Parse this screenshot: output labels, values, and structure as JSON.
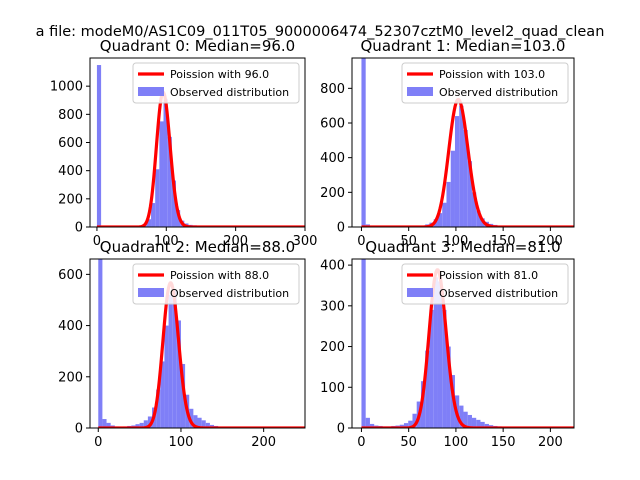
{
  "figure": {
    "suptitle": "a file: modeM0/AS1C09_011T05_9000006474_52307cztM0_level2_quad_clean"
  },
  "colors": {
    "hist": "#7f7ff7",
    "poisson": "#ff0000",
    "axis": "#000000"
  },
  "chart_data": [
    {
      "type": "bar",
      "title": "Quadrant 0: Median=96.0",
      "median": 96.0,
      "xlim": [
        -10,
        300
      ],
      "ylim": [
        0,
        1200
      ],
      "xticks": [
        0,
        100,
        200,
        300
      ],
      "yticks": [
        0,
        200,
        400,
        600,
        800,
        1000
      ],
      "bin_width": 6,
      "bars": [
        [
          0,
          1150
        ],
        [
          42,
          2
        ],
        [
          48,
          5
        ],
        [
          54,
          6
        ],
        [
          60,
          10
        ],
        [
          66,
          20
        ],
        [
          72,
          55
        ],
        [
          78,
          170
        ],
        [
          84,
          410
        ],
        [
          90,
          750
        ],
        [
          96,
          910
        ],
        [
          102,
          640
        ],
        [
          108,
          330
        ],
        [
          114,
          120
        ],
        [
          120,
          45
        ],
        [
          126,
          25
        ],
        [
          132,
          15
        ],
        [
          138,
          12
        ],
        [
          144,
          8
        ],
        [
          150,
          6
        ],
        [
          156,
          5
        ],
        [
          162,
          4
        ],
        [
          168,
          3
        ],
        [
          174,
          3
        ],
        [
          180,
          2
        ],
        [
          186,
          2
        ],
        [
          192,
          2
        ]
      ],
      "poisson_label": "Poission with 96.0",
      "hist_label": "Observed distribution"
    },
    {
      "type": "bar",
      "title": "Quadrant 1: Median=103.0",
      "median": 103.0,
      "xlim": [
        -10,
        225
      ],
      "ylim": [
        0,
        975
      ],
      "xticks": [
        0,
        50,
        100,
        150,
        200
      ],
      "yticks": [
        0,
        200,
        400,
        600,
        800
      ],
      "bin_width": 4.5,
      "bars": [
        [
          0,
          975
        ],
        [
          4.5,
          15
        ],
        [
          54,
          3
        ],
        [
          58.5,
          5
        ],
        [
          63,
          8
        ],
        [
          67.5,
          15
        ],
        [
          72,
          25
        ],
        [
          76.5,
          45
        ],
        [
          81,
          80
        ],
        [
          85.5,
          140
        ],
        [
          90,
          260
        ],
        [
          94.5,
          440
        ],
        [
          99,
          640
        ],
        [
          103.5,
          700
        ],
        [
          108,
          560
        ],
        [
          112.5,
          380
        ],
        [
          117,
          200
        ],
        [
          121.5,
          95
        ],
        [
          126,
          50
        ],
        [
          130.5,
          30
        ],
        [
          135,
          18
        ],
        [
          139.5,
          12
        ],
        [
          144,
          8
        ],
        [
          148.5,
          5
        ],
        [
          153,
          4
        ],
        [
          157.5,
          3
        ],
        [
          162,
          2
        ],
        [
          166.5,
          2
        ]
      ],
      "poisson_label": "Poission with 103.0",
      "hist_label": "Observed distribution"
    },
    {
      "type": "bar",
      "title": "Quadrant 2: Median=88.0",
      "median": 88.0,
      "xlim": [
        -10,
        250
      ],
      "ylim": [
        0,
        660
      ],
      "xticks": [
        0,
        100,
        200
      ],
      "yticks": [
        0,
        200,
        400,
        600
      ],
      "bin_width": 5,
      "bars": [
        [
          0,
          660
        ],
        [
          5,
          35
        ],
        [
          10,
          20
        ],
        [
          15,
          10
        ],
        [
          20,
          6
        ],
        [
          25,
          5
        ],
        [
          30,
          6
        ],
        [
          35,
          8
        ],
        [
          40,
          10
        ],
        [
          45,
          15
        ],
        [
          50,
          20
        ],
        [
          55,
          30
        ],
        [
          60,
          45
        ],
        [
          65,
          80
        ],
        [
          70,
          150
        ],
        [
          75,
          260
        ],
        [
          80,
          400
        ],
        [
          85,
          520
        ],
        [
          90,
          540
        ],
        [
          95,
          420
        ],
        [
          100,
          250
        ],
        [
          105,
          130
        ],
        [
          110,
          75
        ],
        [
          115,
          50
        ],
        [
          120,
          40
        ],
        [
          125,
          30
        ],
        [
          130,
          20
        ],
        [
          135,
          12
        ],
        [
          140,
          8
        ],
        [
          145,
          5
        ],
        [
          150,
          4
        ],
        [
          155,
          3
        ],
        [
          160,
          2
        ]
      ],
      "poisson_label": "Poission with 88.0",
      "hist_label": "Observed distribution"
    },
    {
      "type": "bar",
      "title": "Quadrant 3: Median=81.0",
      "median": 81.0,
      "xlim": [
        -10,
        225
      ],
      "ylim": [
        0,
        415
      ],
      "xticks": [
        0,
        50,
        100,
        150,
        200
      ],
      "yticks": [
        0,
        100,
        200,
        300,
        400
      ],
      "bin_width": 4.5,
      "bars": [
        [
          0,
          415
        ],
        [
          4.5,
          25
        ],
        [
          9,
          10
        ],
        [
          13.5,
          6
        ],
        [
          18,
          5
        ],
        [
          22.5,
          4
        ],
        [
          27,
          4
        ],
        [
          31.5,
          5
        ],
        [
          36,
          6
        ],
        [
          40.5,
          8
        ],
        [
          45,
          12
        ],
        [
          49.5,
          18
        ],
        [
          54,
          35
        ],
        [
          58.5,
          65
        ],
        [
          63,
          115
        ],
        [
          67.5,
          190
        ],
        [
          72,
          290
        ],
        [
          76.5,
          370
        ],
        [
          81,
          360
        ],
        [
          85.5,
          290
        ],
        [
          90,
          200
        ],
        [
          94.5,
          130
        ],
        [
          99,
          80
        ],
        [
          103.5,
          55
        ],
        [
          108,
          40
        ],
        [
          112.5,
          32
        ],
        [
          117,
          25
        ],
        [
          121.5,
          20
        ],
        [
          126,
          15
        ],
        [
          130.5,
          10
        ],
        [
          135,
          7
        ],
        [
          139.5,
          5
        ],
        [
          144,
          4
        ],
        [
          148.5,
          3
        ],
        [
          153,
          2
        ]
      ],
      "poisson_label": "Poission with 81.0",
      "hist_label": "Observed distribution"
    }
  ]
}
